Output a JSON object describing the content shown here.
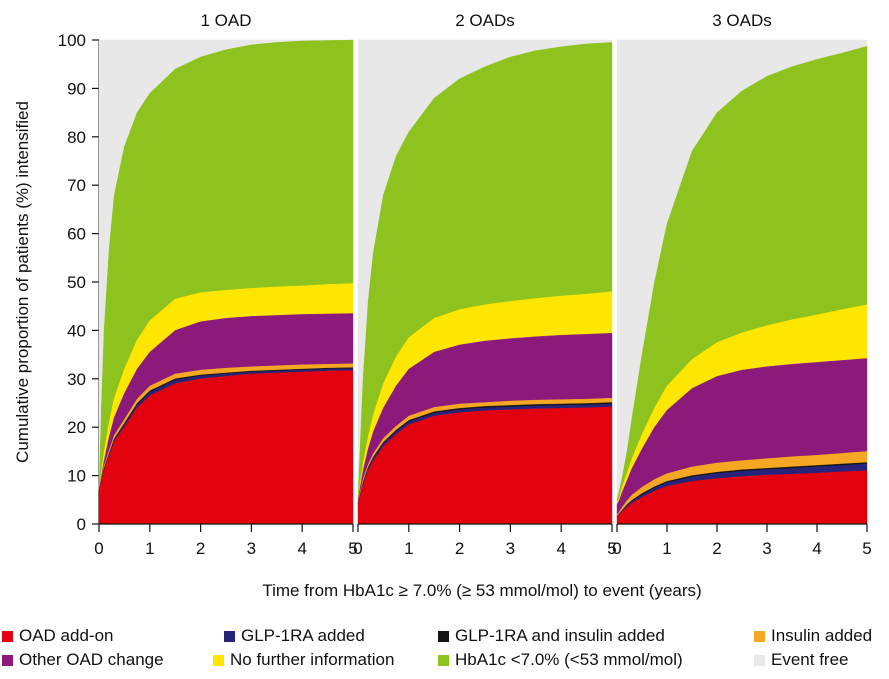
{
  "chart_data": {
    "type": "area",
    "subtype": "stacked cumulative incidence, 3 panels",
    "ylabel": "Cumulative proportion of patients (%) intensified",
    "xlabel": "Time from HbA1c ≥ 7.0% (≥ 53 mmol/mol) to event (years)",
    "ylim": [
      0,
      100
    ],
    "xlim": [
      0,
      5
    ],
    "yticks": [
      "0",
      "10",
      "20",
      "30",
      "40",
      "50",
      "60",
      "70",
      "80",
      "90",
      "100"
    ],
    "xticks": [
      "0",
      "1",
      "2",
      "3",
      "4",
      "5"
    ],
    "x": [
      0,
      0.05,
      0.1,
      0.2,
      0.3,
      0.5,
      0.75,
      1,
      1.5,
      2,
      2.5,
      3,
      3.5,
      4,
      4.5,
      5
    ],
    "series_names": [
      "OAD add-on",
      "GLP-1RA added",
      "GLP-1RA and insulin added",
      "Insulin added",
      "Other OAD change",
      "No further information",
      "HbA1c <7.0% (<53 mmol/mol)",
      "Event free"
    ],
    "colors": {
      "OAD add-on": "#e3000f",
      "GLP-1RA added": "#27237a",
      "GLP-1RA and insulin added": "#141414",
      "Insulin added": "#f5a623",
      "Other OAD change": "#8b1a7a",
      "No further information": "#ffe600",
      "HbA1c <7.0% (<53 mmol/mol)": "#8dc21f",
      "Event free": "#e8e8e8"
    },
    "panels": [
      {
        "title": "1 OAD",
        "cumulative": {
          "OAD add-on": [
            7,
            9,
            11,
            14,
            17,
            20,
            24,
            26.5,
            29,
            30,
            30.5,
            31,
            31.2,
            31.4,
            31.6,
            31.7
          ],
          "GLP-1RA added": [
            7,
            9.2,
            11.3,
            14.4,
            17.4,
            20.5,
            24.6,
            27.2,
            29.7,
            30.6,
            31,
            31.4,
            31.6,
            31.8,
            32,
            32.1
          ],
          "GLP-1RA and insulin added": [
            7,
            9.3,
            11.5,
            14.6,
            17.6,
            20.8,
            24.9,
            27.5,
            30,
            30.8,
            31.2,
            31.6,
            31.8,
            32,
            32.2,
            32.3
          ],
          "Insulin added": [
            7,
            9.5,
            12,
            15.2,
            18.3,
            21.6,
            25.8,
            28.5,
            31,
            31.8,
            32.2,
            32.5,
            32.7,
            32.9,
            33,
            33.1
          ],
          "Other OAD change": [
            7,
            10,
            13,
            18,
            22,
            27,
            32,
            35.5,
            40,
            41.8,
            42.5,
            42.9,
            43.1,
            43.3,
            43.4,
            43.5
          ],
          "No further information": [
            7,
            11,
            15,
            21,
            26,
            32,
            38,
            42,
            46.5,
            47.8,
            48.3,
            48.7,
            49,
            49.2,
            49.5,
            49.7
          ],
          "HbA1c <7.0% (<53 mmol/mol)": [
            7,
            25,
            40,
            57,
            68,
            78,
            85,
            89,
            94,
            96.5,
            98,
            99,
            99.5,
            99.8,
            99.9,
            100
          ],
          "Event free": [
            100,
            100,
            100,
            100,
            100,
            100,
            100,
            100,
            100,
            100,
            100,
            100,
            100,
            100,
            100,
            100
          ]
        }
      },
      {
        "title": "2 OADs",
        "cumulative": {
          "OAD add-on": [
            4,
            6,
            8,
            11,
            13,
            16,
            18.5,
            20.5,
            22.3,
            23,
            23.4,
            23.6,
            23.8,
            23.9,
            24,
            24.2
          ],
          "GLP-1RA added": [
            4.2,
            6.2,
            8.3,
            11.4,
            13.5,
            16.6,
            19.1,
            21.1,
            22.9,
            23.6,
            24,
            24.2,
            24.4,
            24.5,
            24.6,
            24.8
          ],
          "GLP-1RA and insulin added": [
            4.3,
            6.4,
            8.6,
            11.7,
            13.8,
            16.9,
            19.4,
            21.4,
            23.2,
            23.9,
            24.3,
            24.5,
            24.7,
            24.8,
            24.9,
            25.1
          ],
          "Insulin added": [
            4.6,
            6.9,
            9.2,
            12.3,
            14.5,
            17.7,
            20.2,
            22.3,
            24.1,
            24.8,
            25.1,
            25.4,
            25.6,
            25.7,
            25.8,
            26
          ],
          "Other OAD change": [
            5,
            8,
            11,
            15.5,
            19,
            24,
            28.5,
            32,
            35.5,
            37,
            37.8,
            38.3,
            38.7,
            39,
            39.2,
            39.4
          ],
          "No further information": [
            5.5,
            9,
            12.5,
            18,
            22.5,
            29,
            34.5,
            38.5,
            42.5,
            44.3,
            45.3,
            46,
            46.6,
            47.1,
            47.5,
            48
          ],
          "HbA1c <7.0% (<53 mmol/mol)": [
            5.5,
            18,
            30,
            46,
            56,
            68,
            76,
            81,
            88,
            92,
            94.5,
            96.5,
            97.8,
            98.6,
            99.2,
            99.5
          ],
          "Event free": [
            100,
            100,
            100,
            100,
            100,
            100,
            100,
            100,
            100,
            100,
            100,
            100,
            100,
            100,
            100,
            100
          ]
        }
      },
      {
        "title": "3 OADs",
        "cumulative": {
          "OAD add-on": [
            1.5,
            2,
            2.5,
            3.5,
            4.3,
            5.5,
            6.8,
            7.8,
            8.8,
            9.4,
            9.8,
            10.1,
            10.3,
            10.5,
            10.8,
            11
          ],
          "GLP-1RA added": [
            1.5,
            2.1,
            2.7,
            3.8,
            4.7,
            6,
            7.4,
            8.5,
            9.7,
            10.4,
            10.9,
            11.2,
            11.5,
            11.8,
            12.1,
            12.4
          ],
          "GLP-1RA and insulin added": [
            1.6,
            2.2,
            2.8,
            4,
            4.9,
            6.3,
            7.7,
            8.8,
            10,
            10.7,
            11.2,
            11.5,
            11.8,
            12.1,
            12.4,
            12.7
          ],
          "Insulin added": [
            1.8,
            2.6,
            3.4,
            4.8,
            6,
            7.6,
            9.2,
            10.4,
            11.8,
            12.6,
            13.1,
            13.5,
            13.9,
            14.2,
            14.6,
            15
          ],
          "Other OAD change": [
            4,
            5,
            6.5,
            9,
            11.5,
            15.5,
            20,
            23.5,
            28,
            30.5,
            31.8,
            32.5,
            33,
            33.4,
            33.8,
            34.2
          ],
          "No further information": [
            4.5,
            5.5,
            7.5,
            10.5,
            13.5,
            18.5,
            24,
            28.5,
            34,
            37.5,
            39.5,
            41,
            42.2,
            43.2,
            44.3,
            45.3
          ],
          "HbA1c <7.0% (<53 mmol/mol)": [
            5,
            7,
            9.5,
            15,
            22,
            35,
            50,
            62,
            77,
            85,
            89.5,
            92.5,
            94.5,
            96,
            97.3,
            98.7
          ],
          "Event free": [
            100,
            100,
            100,
            100,
            100,
            100,
            100,
            100,
            100,
            100,
            100,
            100,
            100,
            100,
            100,
            100
          ]
        }
      }
    ],
    "legend": {
      "placement": "bottom",
      "items": [
        {
          "label": "OAD add-on",
          "color": "#e3000f"
        },
        {
          "label": "GLP-1RA added",
          "color": "#27237a"
        },
        {
          "label": "GLP-1RA and insulin added",
          "color": "#141414"
        },
        {
          "label": "Insulin added",
          "color": "#f5a623"
        },
        {
          "label": "Other OAD change",
          "color": "#8b1a7a"
        },
        {
          "label": "No further information",
          "color": "#ffe600"
        },
        {
          "label": "HbA1c <7.0% (<53 mmol/mol)",
          "color": "#8dc21f"
        },
        {
          "label": "Event free",
          "color": "#e8e8e8"
        }
      ]
    }
  }
}
